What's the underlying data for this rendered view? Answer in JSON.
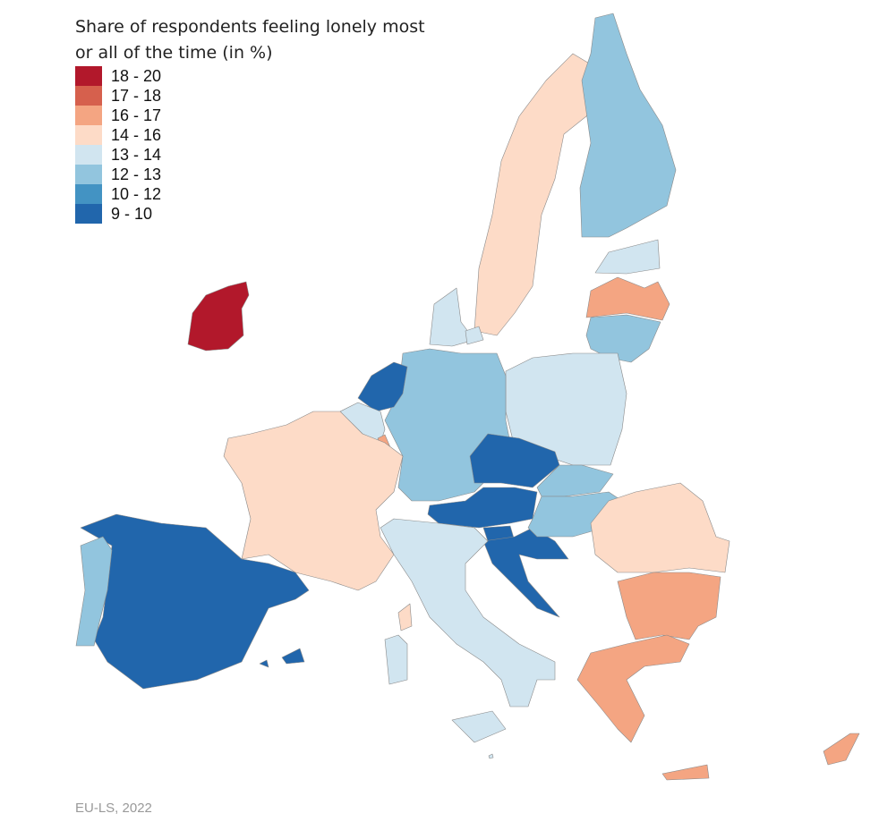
{
  "legend": {
    "title": "Share of respondents feeling lonely most or all of the time (in %)",
    "classes": [
      {
        "label": "18 - 20",
        "color": "#b2182b"
      },
      {
        "label": "17 - 18",
        "color": "#d6604d"
      },
      {
        "label": "16 - 17",
        "color": "#f4a582"
      },
      {
        "label": "14 - 16",
        "color": "#fddbc7"
      },
      {
        "label": "13 - 14",
        "color": "#d1e5f0"
      },
      {
        "label": "12 - 13",
        "color": "#92c5de"
      },
      {
        "label": "10 - 12",
        "color": "#4393c3"
      },
      {
        "label": "9 - 10",
        "color": "#2166ac"
      }
    ]
  },
  "regions": [
    {
      "id": "IE",
      "class": 0
    },
    {
      "id": "SE",
      "class": 3
    },
    {
      "id": "FI",
      "class": 5
    },
    {
      "id": "EE",
      "class": 4
    },
    {
      "id": "LV",
      "class": 2
    },
    {
      "id": "LT",
      "class": 5
    },
    {
      "id": "DK",
      "class": 4
    },
    {
      "id": "PL",
      "class": 4
    },
    {
      "id": "DE",
      "class": 5
    },
    {
      "id": "NL",
      "class": 7
    },
    {
      "id": "BE",
      "class": 4
    },
    {
      "id": "LU",
      "class": 2
    },
    {
      "id": "FR",
      "class": 3
    },
    {
      "id": "ES",
      "class": 7
    },
    {
      "id": "PT",
      "class": 5
    },
    {
      "id": "CZ",
      "class": 7
    },
    {
      "id": "AT",
      "class": 7
    },
    {
      "id": "SI",
      "class": 7
    },
    {
      "id": "HR",
      "class": 7
    },
    {
      "id": "SK",
      "class": 5
    },
    {
      "id": "HU",
      "class": 5
    },
    {
      "id": "RO",
      "class": 3
    },
    {
      "id": "BG",
      "class": 2
    },
    {
      "id": "GR",
      "class": 2
    },
    {
      "id": "CY",
      "class": 2
    },
    {
      "id": "IT",
      "class": 4
    },
    {
      "id": "MT",
      "class": 4
    }
  ],
  "source": "EU-LS, 2022"
}
